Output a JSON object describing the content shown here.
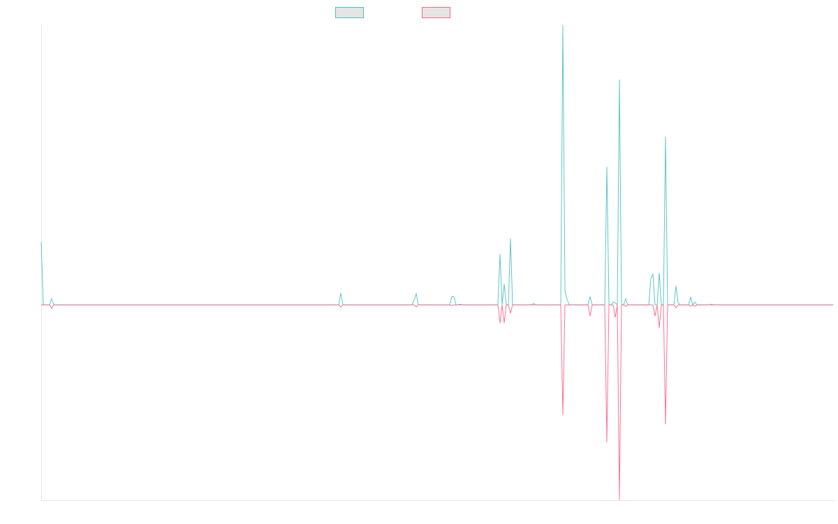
{
  "chart_data": {
    "type": "line",
    "title": "",
    "xlabel": "",
    "ylabel": "",
    "point_count": 379,
    "ylim": [
      -280,
      401
    ],
    "grid": false,
    "legend_placement": "top",
    "series": [
      {
        "color": "#4bc0c0",
        "legend_fill": "#e5e5e5",
        "nonzero_points": [
          [
            0,
            90
          ],
          [
            5,
            9
          ],
          [
            143,
            17
          ],
          [
            178,
            7
          ],
          [
            179,
            16
          ],
          [
            196,
            12
          ],
          [
            197,
            12
          ],
          [
            200,
            1
          ],
          [
            219,
            73
          ],
          [
            221,
            30
          ],
          [
            224,
            95
          ],
          [
            235,
            2
          ],
          [
            249,
            401
          ],
          [
            250,
            20
          ],
          [
            251,
            8
          ],
          [
            262,
            12
          ],
          [
            270,
            198
          ],
          [
            273,
            4
          ],
          [
            274,
            3
          ],
          [
            276,
            323
          ],
          [
            279,
            9
          ],
          [
            291,
            38
          ],
          [
            292,
            44
          ],
          [
            295,
            46
          ],
          [
            298,
            241
          ],
          [
            303,
            27
          ],
          [
            304,
            3
          ],
          [
            310,
            11
          ],
          [
            312,
            4
          ],
          [
            320,
            1
          ]
        ]
      },
      {
        "color": "#ff6384",
        "legend_fill": "#e5e5e5",
        "nonzero_points": [
          [
            5,
            -5
          ],
          [
            143,
            -3
          ],
          [
            179,
            -3
          ],
          [
            196,
            -1
          ],
          [
            219,
            -26
          ],
          [
            221,
            -26
          ],
          [
            224,
            -12
          ],
          [
            249,
            -158
          ],
          [
            262,
            -16
          ],
          [
            270,
            -197
          ],
          [
            274,
            -18
          ],
          [
            276,
            -280
          ],
          [
            279,
            -2
          ],
          [
            293,
            -16
          ],
          [
            295,
            -33
          ],
          [
            298,
            -171
          ],
          [
            303,
            -4
          ],
          [
            310,
            -2
          ],
          [
            312,
            -2
          ]
        ]
      }
    ]
  }
}
